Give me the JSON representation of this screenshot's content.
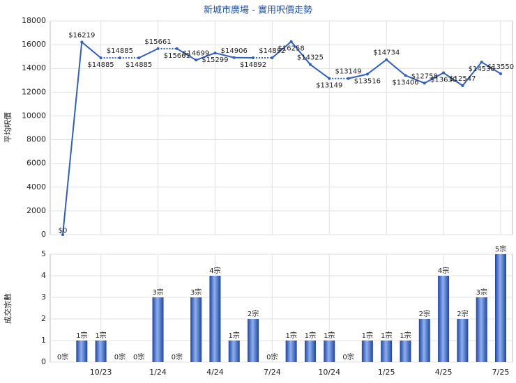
{
  "chart_data": [
    {
      "type": "line",
      "title": "新城市廣場 - 實用呎價走勢",
      "ylabel": "平均呎價",
      "color": "#2f5fbf",
      "values": [
        0,
        16219,
        14885,
        14885,
        14885,
        15661,
        15661,
        14699,
        15299,
        14906,
        14892,
        14892,
        16258,
        14325,
        13149,
        13149,
        13516,
        14734,
        13406,
        12758,
        13630,
        12547,
        14530,
        13550
      ],
      "value_labels": [
        "$0",
        "$16219",
        "$14885",
        "$14885",
        "$14885",
        "$15661",
        "$15661",
        "$14699",
        "$15299",
        "$14906",
        "$14892",
        "$14892",
        "$16258",
        "$14325",
        "$13149",
        "$13149",
        "$13516",
        "$14734",
        "$13406",
        "$12758",
        "$13630",
        "$12547",
        "$14530",
        "$13550"
      ],
      "ylim": [
        0,
        18000
      ],
      "yticks": [
        0,
        2000,
        4000,
        6000,
        8000,
        10000,
        12000,
        14000,
        16000,
        18000
      ],
      "grid": true
    },
    {
      "type": "bar",
      "ylabel": "成交宗數",
      "color": "#3461c1",
      "categories": [
        null,
        null,
        "10/23",
        null,
        null,
        "1/24",
        null,
        null,
        "4/24",
        null,
        null,
        "7/24",
        null,
        null,
        "10/24",
        null,
        null,
        "1/25",
        null,
        null,
        "4/25",
        null,
        null,
        "7/25"
      ],
      "values": [
        0,
        1,
        1,
        0,
        0,
        3,
        0,
        3,
        4,
        1,
        2,
        0,
        1,
        1,
        1,
        0,
        1,
        1,
        1,
        2,
        4,
        2,
        3,
        5
      ],
      "value_labels": [
        "0宗",
        "1宗",
        "1宗",
        "0宗",
        "0宗",
        "3宗",
        "0宗",
        "3宗",
        "4宗",
        "1宗",
        "2宗",
        "0宗",
        "1宗",
        "1宗",
        "1宗",
        "0宗",
        "1宗",
        "1宗",
        "1宗",
        "2宗",
        "4宗",
        "2宗",
        "3宗",
        "5宗"
      ],
      "ylim": [
        0,
        5
      ],
      "yticks": [
        0,
        1,
        2,
        3,
        4,
        5
      ],
      "grid": true
    }
  ]
}
